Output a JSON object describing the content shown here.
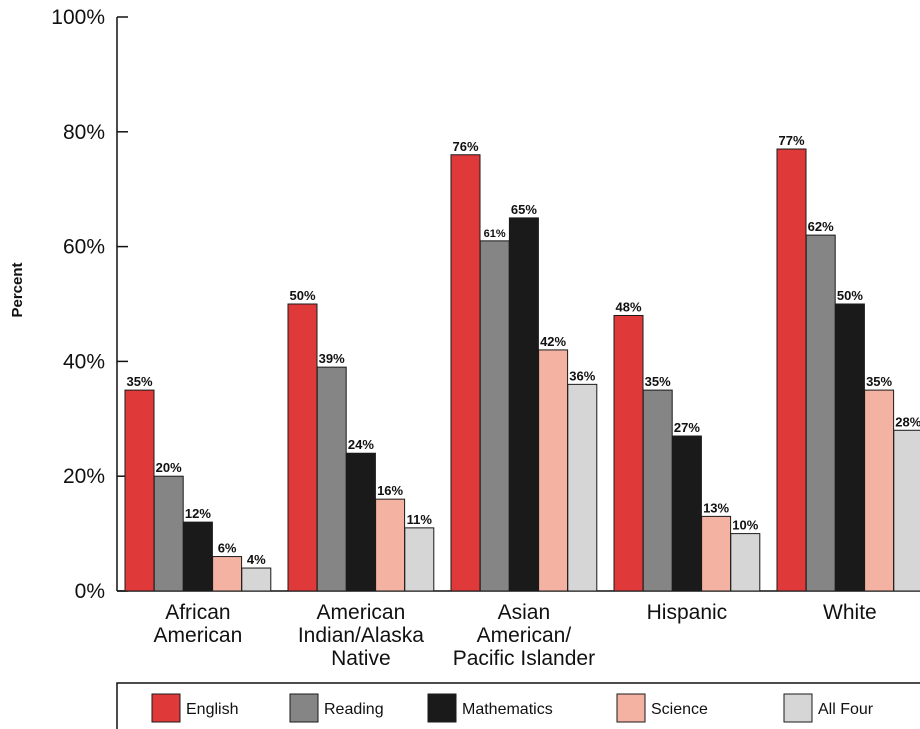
{
  "chart_data": {
    "type": "bar",
    "title": "",
    "xlabel": "",
    "ylabel": "Percent",
    "ylim": [
      0,
      100
    ],
    "yticks": [
      "0%",
      "20%",
      "40%",
      "60%",
      "80%",
      "100%"
    ],
    "grid": false,
    "legend_position": "bottom",
    "categories": [
      [
        "African",
        "American"
      ],
      [
        "American",
        "Indian/Alaska",
        "Native"
      ],
      [
        "Asian",
        "American/",
        "Pacific Islander"
      ],
      [
        "Hispanic"
      ],
      [
        "White"
      ]
    ],
    "series": [
      {
        "name": "English",
        "color": "#e0393a",
        "values": [
          35,
          50,
          76,
          48,
          77
        ],
        "labels": [
          "35%",
          "50%",
          "76%",
          "48%",
          "77%"
        ]
      },
      {
        "name": "Reading",
        "color": "#858585",
        "values": [
          20,
          39,
          61,
          35,
          62
        ],
        "labels": [
          "20%",
          "39%",
          "61%",
          "35%",
          "62%"
        ]
      },
      {
        "name": "Mathematics",
        "color": "#1a1a1a",
        "values": [
          12,
          24,
          65,
          27,
          50
        ],
        "labels": [
          "12%",
          "24%",
          "65%",
          "27%",
          "50%"
        ]
      },
      {
        "name": "Science",
        "color": "#f4b2a2",
        "values": [
          6,
          16,
          42,
          13,
          35
        ],
        "labels": [
          "6%",
          "16%",
          "42%",
          "13%",
          "35%"
        ]
      },
      {
        "name": "All Four",
        "color": "#d6d6d6",
        "values": [
          4,
          11,
          36,
          10,
          28
        ],
        "labels": [
          "4%",
          "11%",
          "36%",
          "10%",
          "28%"
        ]
      }
    ]
  }
}
